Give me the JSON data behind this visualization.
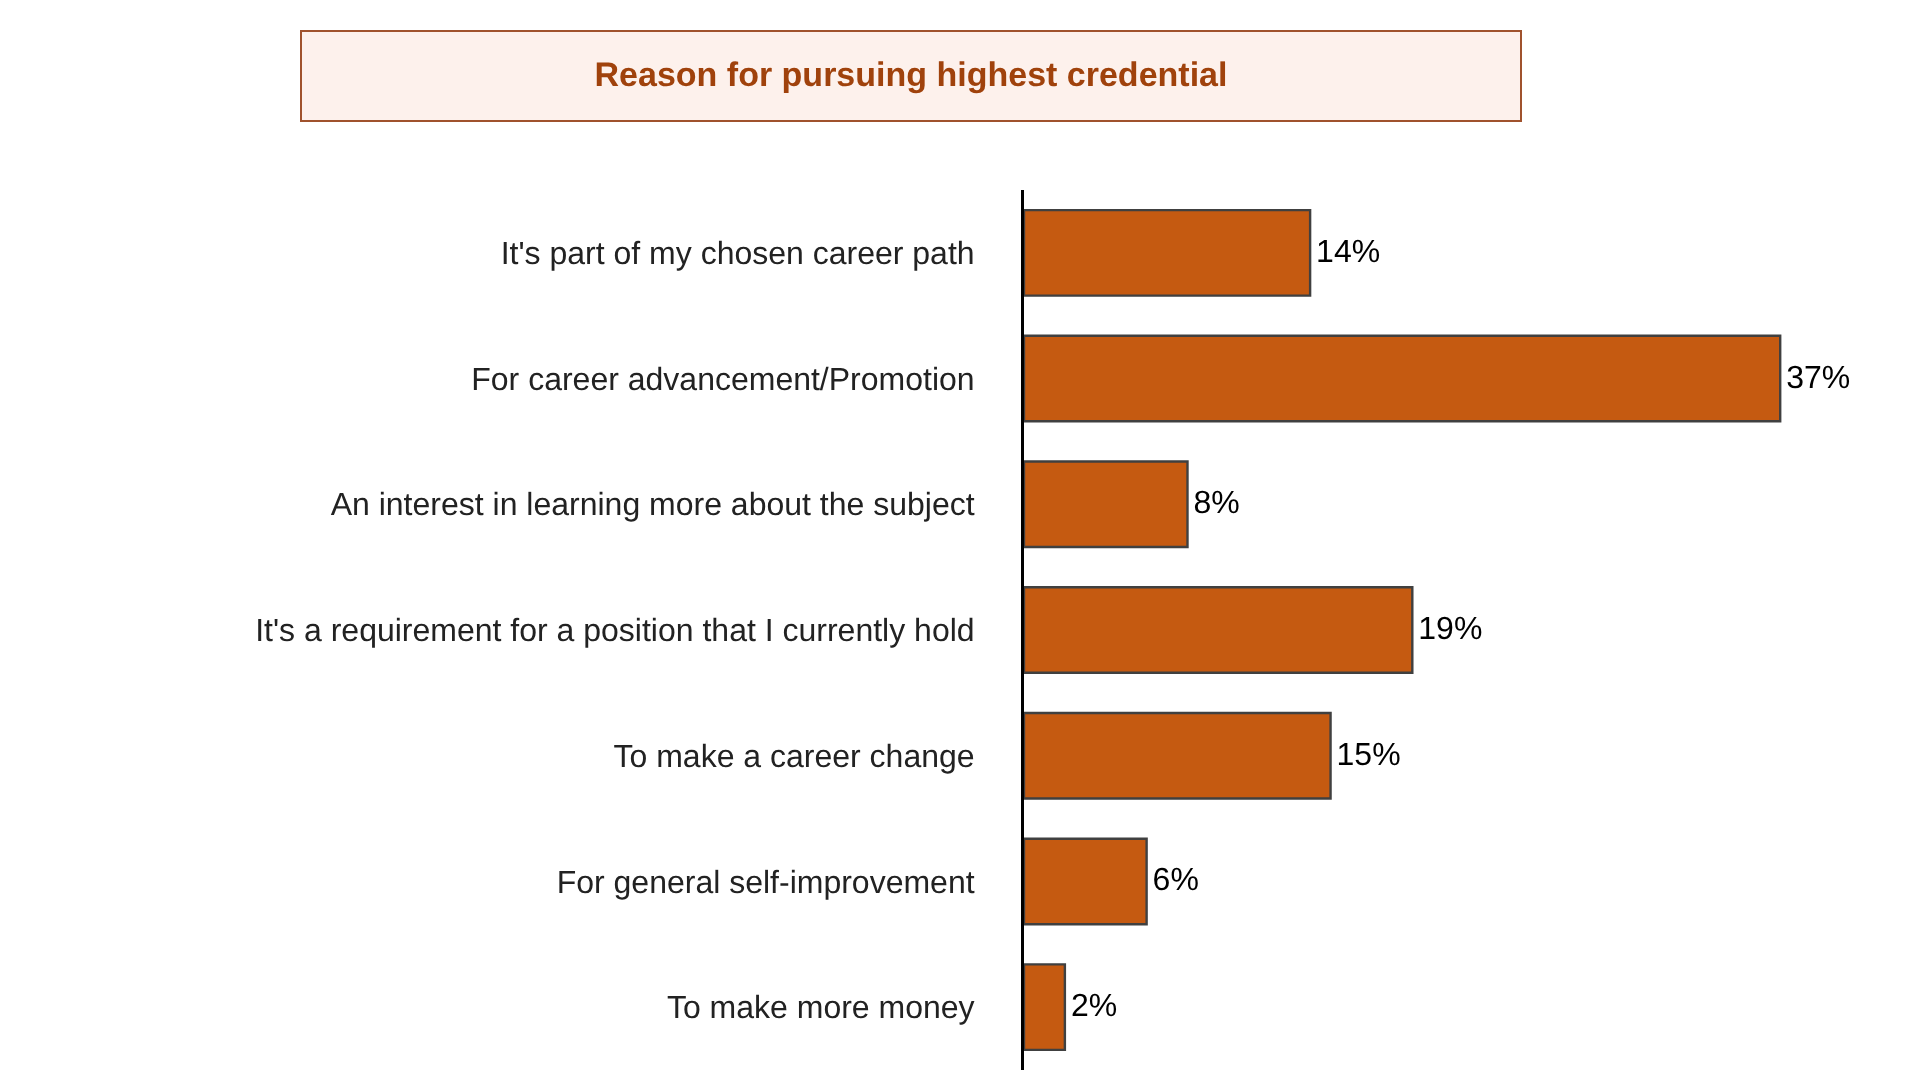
{
  "chart_data": {
    "type": "bar",
    "orientation": "horizontal",
    "title": "Reason for pursuing highest credential",
    "categories": [
      "It's part of my chosen career path",
      "For career advancement/Promotion",
      "An interest in learning more about the subject",
      "It's a requirement for a position that I currently hold",
      "To make a career change",
      "For general self-improvement",
      "To make more money"
    ],
    "values": [
      14,
      37,
      8,
      19,
      15,
      6,
      2
    ],
    "value_labels": [
      "14%",
      "37%",
      "8%",
      "19%",
      "15%",
      "6%",
      "2%"
    ],
    "color": "#c55a11",
    "tick_labels": "y",
    "legend": false
  }
}
